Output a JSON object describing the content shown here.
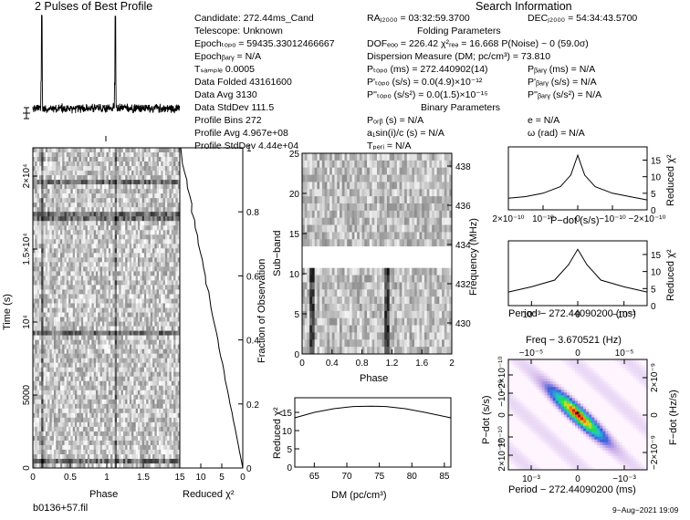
{
  "chart_data": [
    {
      "type": "line",
      "title": "2 Pulses of Best Profile",
      "description_values": {
        "peaks_phase": [
          0.12,
          1.12
        ],
        "baseline": "noise"
      }
    },
    {
      "type": "heatmap",
      "xlabel": "Phase",
      "ylabel": "Time (s)",
      "xticks": [
        "0",
        "0.5",
        "1",
        "1.5"
      ],
      "yticks": [
        "0",
        "5000",
        "10⁴",
        "1.5×10⁴",
        "2×10⁴"
      ],
      "xlim": [
        0,
        2
      ],
      "ylim": [
        0,
        22000
      ]
    },
    {
      "type": "line",
      "xlabel": "Reduced χ²",
      "ylabel": "Fraction of Observation",
      "xticks": [
        "15",
        "10",
        "5",
        "0"
      ],
      "yticks": [
        "0",
        "0.2",
        "0.4",
        "0.6",
        "0.8",
        "1"
      ],
      "x": [
        0,
        2,
        4,
        6,
        8,
        10,
        12,
        14,
        15
      ],
      "y": [
        0,
        0.12,
        0.25,
        0.38,
        0.52,
        0.65,
        0.78,
        0.92,
        1.0
      ]
    },
    {
      "type": "heatmap",
      "xlabel": "Phase",
      "ylabel": "Sub−band",
      "ylabel2": "Frequency (MHz)",
      "xticks": [
        "0",
        "0.4",
        "0.8",
        "1.2",
        "1.6",
        "2"
      ],
      "yticks": [
        "0",
        "5",
        "10",
        "15",
        "20",
        "25"
      ],
      "y2ticks": [
        "430",
        "432",
        "434",
        "436",
        "438"
      ],
      "xlim": [
        0,
        2
      ],
      "ylim": [
        0,
        25
      ]
    },
    {
      "type": "line",
      "xlabel": "DM (pc/cm³)",
      "ylabel": "Reduced χ²",
      "xticks": [
        "65",
        "70",
        "75",
        "80",
        "85"
      ],
      "yticks": [
        "0",
        "5",
        "10",
        "15"
      ],
      "x": [
        62,
        65,
        68,
        71,
        73.8,
        76,
        79,
        82,
        86
      ],
      "y": [
        13.5,
        15.0,
        16.0,
        16.6,
        16.7,
        16.6,
        16.0,
        15.0,
        13.5
      ],
      "xlim": [
        62,
        86
      ],
      "ylim": [
        0,
        19
      ]
    },
    {
      "type": "line",
      "xlabel": "P−dot (s/s)",
      "ylabel": "Reduced χ²",
      "xticks": [
        "2×10⁻¹⁰",
        "10⁻¹⁰",
        "0",
        "−10⁻¹⁰",
        "−2×10⁻¹⁰"
      ],
      "yticks": [
        "0",
        "5",
        "10",
        "15"
      ],
      "x": [
        2,
        1.5,
        1,
        0.5,
        0.2,
        0,
        -0.2,
        -0.5,
        -1,
        -1.5,
        -2
      ],
      "y": [
        3.5,
        4.0,
        5.0,
        7.0,
        10.5,
        16.5,
        10.5,
        7.0,
        5.0,
        4.0,
        3.0
      ]
    },
    {
      "type": "line",
      "xlabel": "Period − 272.44090200 (ms)",
      "ylabel": "Reduced χ²",
      "xticks": [
        "10⁻³",
        "0",
        "−10⁻³"
      ],
      "yticks": [
        "0",
        "5",
        "10",
        "15"
      ],
      "x": [
        1.5,
        1,
        0.5,
        0.2,
        0,
        -0.2,
        -0.5,
        -1,
        -1.5
      ],
      "y": [
        4.0,
        5.5,
        7.5,
        12.0,
        16.5,
        12.0,
        7.5,
        5.5,
        4.0
      ]
    },
    {
      "type": "heatmap",
      "title": "Freq − 3.670521 (Hz)",
      "xlabel": "Period − 272.44090200 (ms)",
      "ylabel": "P−dot (s/s)",
      "ylabel2": "F−dot (Hz/s)",
      "xticks": [
        "10⁻³",
        "0",
        "−10⁻³"
      ],
      "x2ticks": [
        "−10⁻⁵",
        "0",
        "10⁻⁵"
      ],
      "yticks": [
        "2×10⁻¹⁰",
        "10⁻¹⁰",
        "0",
        "−10⁻¹⁰",
        "−2×10⁻¹⁰"
      ],
      "y2ticks": [
        "−2×10⁻⁹",
        "0",
        "2×10⁻⁹"
      ]
    }
  ],
  "info": {
    "header": "Search Information",
    "folding_header": "Folding Parameters",
    "binary_header": "Binary Parameters",
    "col1": [
      "Candidate:  272.44ms_Cand",
      "Telescope:  Unknown",
      "Epochₜₒₚₒ = 59435.33012466667",
      "Epochᵦₐᵣᵧ = N/A",
      "Tₛₐₘₚₗₑ  0.0005",
      "Data Folded      43161600",
      "Data Avg          3130",
      "Data StdDev      111.5",
      "Profile Bins       272",
      "Profile Avg       4.967e+08",
      "Profile StdDev   4.44e+04"
    ],
    "ra": "RAⱼ₂₀₀₀ = 03:32:59.3700",
    "dec": "DECⱼ₂₀₀₀ = 54:34:43.5700",
    "col2": [
      "DOFₑₒₒ = 226.42   χ²ᵣₑₔ = 16.668   P(Noise) ~ 0   (59.0σ)",
      "Dispersion Measure (DM; pc/cm³) = 73.810",
      "Pₜₒₚₒ (ms) = 272.440902(14)",
      "P'ₜₒₚₒ (s/s) = 0.0(4.9)×10⁻¹²",
      "P''ₜₒₚₒ (s/s²) = 0.0(1.5)×10⁻¹⁵"
    ],
    "col3": [
      "Pᵦₐᵣᵧ (ms) = N/A",
      "P'ᵦₐᵣᵧ (s/s) = N/A",
      "P''ᵦₐᵣᵧ (s/s²) = N/A"
    ],
    "binary_col1": [
      "Pₒᵣᵦ (s) = N/A",
      "a₁sin(i)/c (s) = N/A",
      "Tₚₑᵣᵢ = N/A"
    ],
    "binary_col2": [
      "e = N/A",
      "ω (rad) = N/A"
    ]
  },
  "footer": {
    "filename": "b0136+57.fil",
    "date": "9−Aug−2021  19:09"
  },
  "colors": {
    "axis": "#000000",
    "trace": "#000000"
  }
}
